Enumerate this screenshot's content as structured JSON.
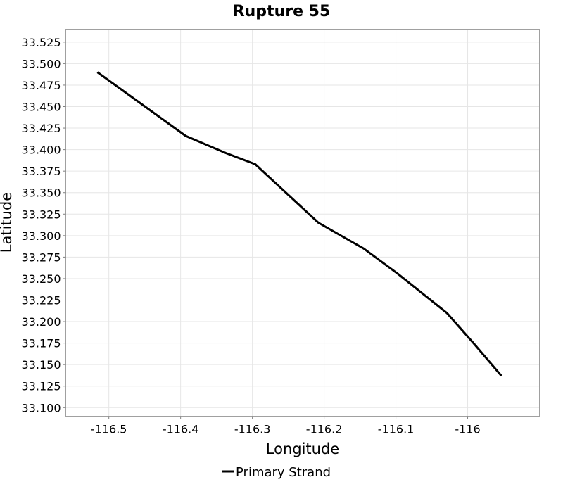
{
  "chart_data": {
    "type": "line",
    "title": "Rupture 55",
    "xlabel": "Longitude",
    "ylabel": "Latitude",
    "xlim": [
      -116.56,
      -115.9
    ],
    "ylim": [
      33.09,
      33.54
    ],
    "x_ticks": [
      -116.5,
      -116.4,
      -116.3,
      -116.2,
      -116.1,
      -116.0
    ],
    "x_tick_labels": [
      "-116.5",
      "-116.4",
      "-116.3",
      "-116.2",
      "-116.1",
      "-116"
    ],
    "y_ticks": [
      33.1,
      33.125,
      33.15,
      33.175,
      33.2,
      33.225,
      33.25,
      33.275,
      33.3,
      33.325,
      33.35,
      33.375,
      33.4,
      33.425,
      33.45,
      33.475,
      33.5,
      33.525
    ],
    "y_tick_labels": [
      "33.100",
      "33.125",
      "33.150",
      "33.175",
      "33.200",
      "33.225",
      "33.250",
      "33.275",
      "33.300",
      "33.325",
      "33.350",
      "33.375",
      "33.400",
      "33.425",
      "33.450",
      "33.475",
      "33.500",
      "33.525"
    ],
    "grid": true,
    "legend_position": "bottom",
    "series": [
      {
        "name": "Primary Strand",
        "color": "#000000",
        "x": [
          -116.516,
          -116.393,
          -116.337,
          -116.296,
          -116.208,
          -116.145,
          -116.098,
          -116.029,
          -115.993,
          -115.953
        ],
        "y": [
          33.49,
          33.416,
          33.396,
          33.383,
          33.315,
          33.285,
          33.256,
          33.21,
          33.176,
          33.137
        ]
      }
    ]
  }
}
